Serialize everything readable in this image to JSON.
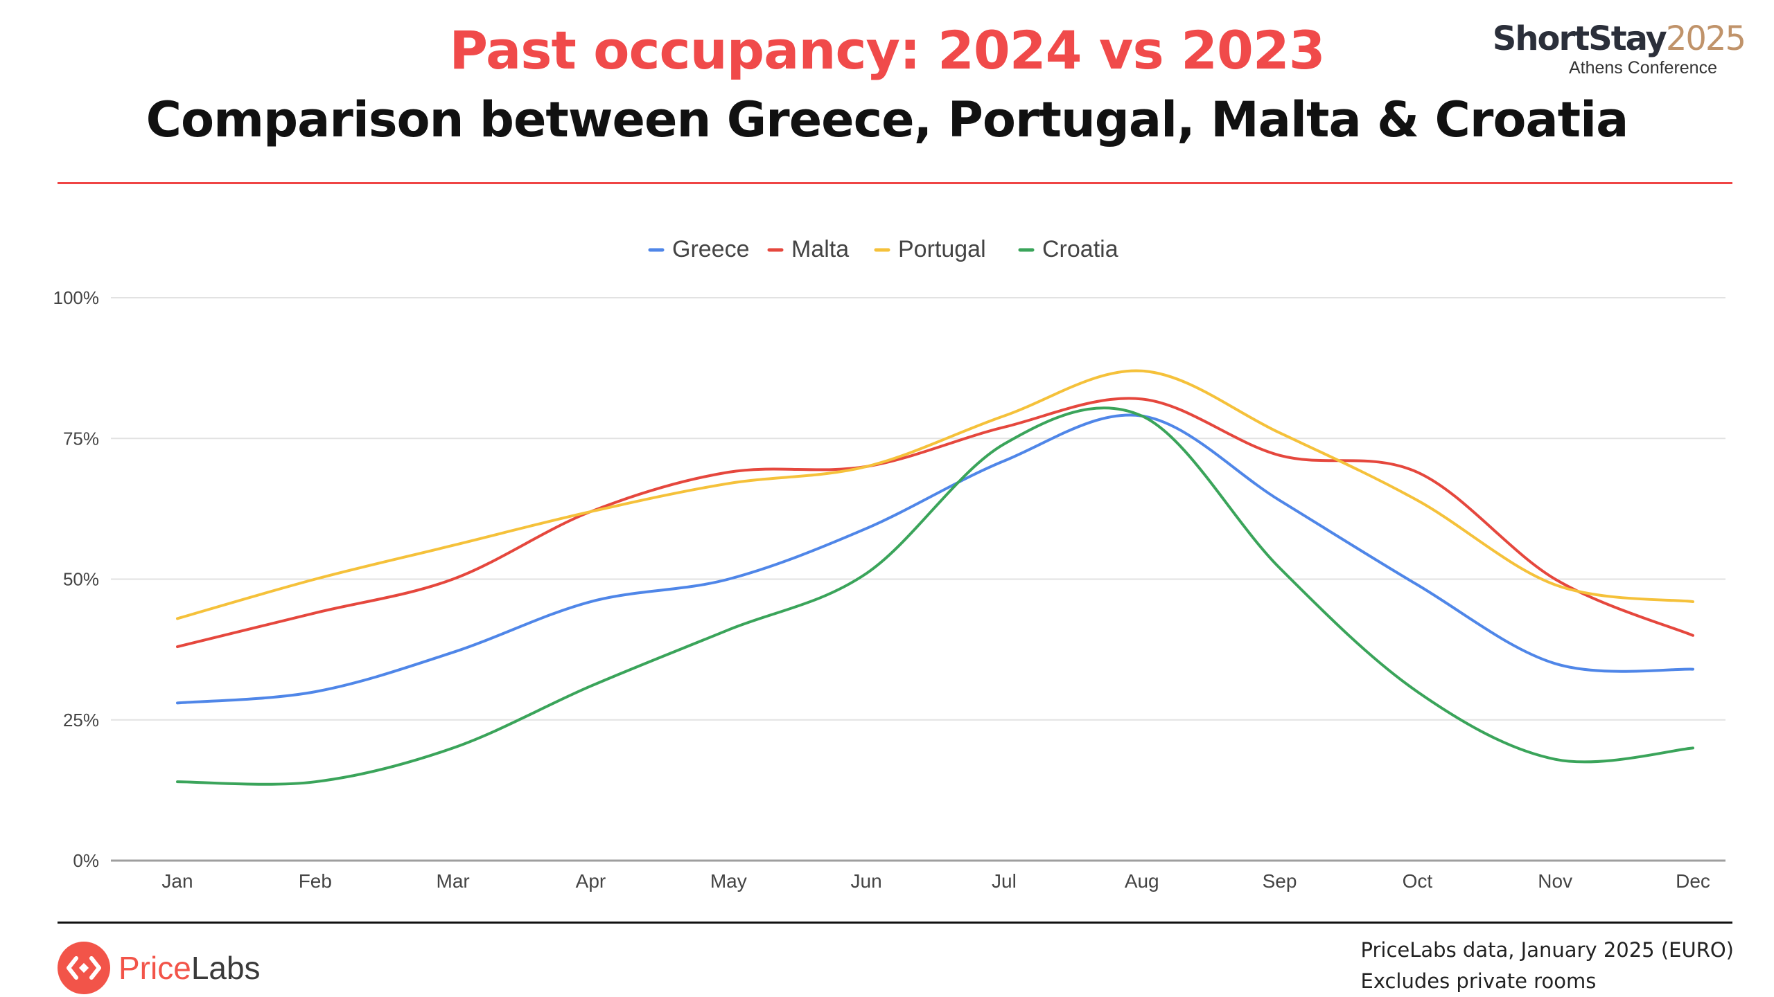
{
  "header": {
    "title": "Past occupancy: 2024 vs 2023",
    "subtitle": "Comparison between Greece, Portugal, Malta & Croatia"
  },
  "conference": {
    "name_prefix": "ShortStay",
    "name_year": "2025",
    "subtitle": "Athens Conference"
  },
  "footer": {
    "brand_prefix": "Price",
    "brand_suffix": "Labs",
    "source_line1": "PriceLabs data, January 2025 (EURO)",
    "source_line2": "Excludes private rooms"
  },
  "colors": {
    "title": "#f04a4a",
    "greece": "#4f86e8",
    "malta": "#e5473d",
    "portugal": "#f5c13a",
    "croatia": "#3aa45a"
  },
  "chart_data": {
    "type": "line",
    "categories": [
      "Jan",
      "Feb",
      "Mar",
      "Apr",
      "May",
      "Jun",
      "Jul",
      "Aug",
      "Sep",
      "Oct",
      "Nov",
      "Dec"
    ],
    "ylim": [
      0,
      100
    ],
    "yticks": [
      "0%",
      "25%",
      "50%",
      "75%",
      "100%"
    ],
    "ytick_values": [
      0,
      25,
      50,
      75,
      100
    ],
    "grid": true,
    "legend_position": "top-center",
    "series": [
      {
        "name": "Greece",
        "color": "#4f86e8",
        "values": [
          28,
          30,
          37,
          46,
          50,
          59,
          71,
          79,
          64,
          49,
          35,
          34
        ]
      },
      {
        "name": "Malta",
        "color": "#e5473d",
        "values": [
          38,
          44,
          50,
          62,
          69,
          70,
          77,
          82,
          72,
          69,
          50,
          40
        ]
      },
      {
        "name": "Portugal",
        "color": "#f5c13a",
        "values": [
          43,
          50,
          56,
          62,
          67,
          70,
          79,
          87,
          76,
          64,
          49,
          46
        ]
      },
      {
        "name": "Croatia",
        "color": "#3aa45a",
        "values": [
          14,
          14,
          20,
          31,
          41,
          51,
          74,
          79,
          52,
          30,
          18,
          20
        ]
      }
    ]
  }
}
